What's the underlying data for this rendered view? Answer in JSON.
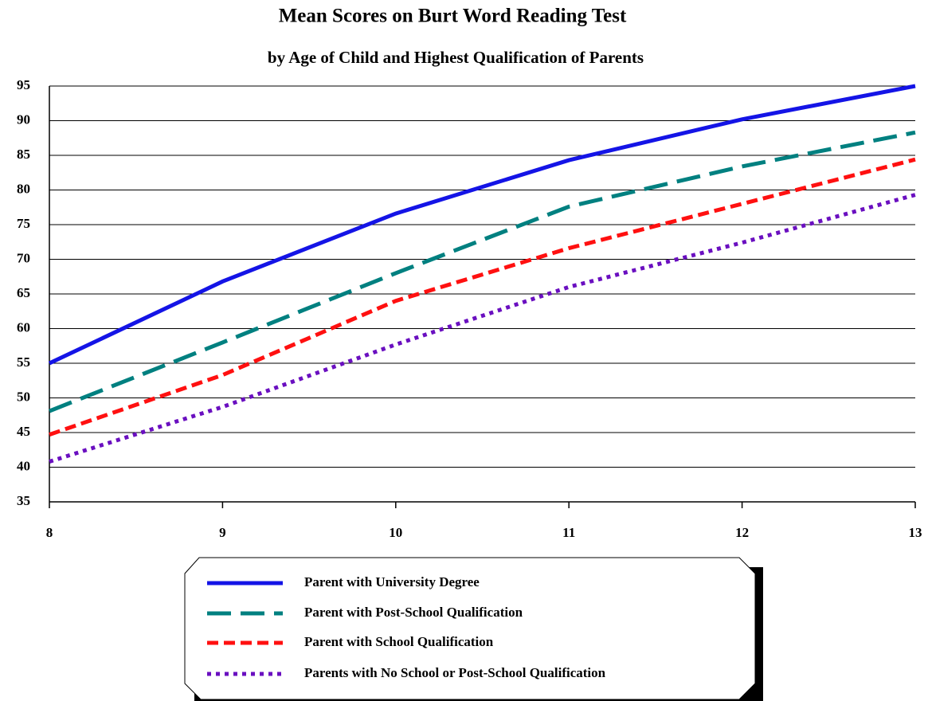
{
  "chart_data": {
    "type": "line",
    "title": "Mean Scores on Burt Word Reading Test",
    "subtitle": "by Age of Child and Highest Qualification of Parents",
    "x": [
      8,
      9,
      10,
      11,
      12,
      13
    ],
    "xlim": [
      8,
      13
    ],
    "xticks": [
      8,
      9,
      10,
      11,
      12,
      13
    ],
    "ylim": [
      35,
      95
    ],
    "yticks": [
      35,
      40,
      45,
      50,
      55,
      60,
      65,
      70,
      75,
      80,
      85,
      90,
      95
    ],
    "grid": true,
    "legend": "bottom",
    "series": [
      {
        "name": "Parent with University Degree",
        "color": "#1414e6",
        "linestyle": "solid",
        "values": [
          55,
          66.8,
          76.6,
          84.3,
          90.2,
          95
        ]
      },
      {
        "name": "Parent with Post-School Qualification",
        "color": "#008080",
        "linestyle": "long-dash",
        "values": [
          48.1,
          58,
          68,
          77.6,
          83.4,
          88.3
        ]
      },
      {
        "name": "Parent with School Qualification",
        "color": "#ff1010",
        "linestyle": "dash",
        "values": [
          44.7,
          53.3,
          64,
          71.6,
          78,
          84.4
        ]
      },
      {
        "name": "Parents with No School or Post-School Qualification",
        "color": "#6a0fc0",
        "linestyle": "dot",
        "values": [
          40.8,
          48.7,
          57.7,
          66,
          72.4,
          79.3
        ]
      }
    ]
  }
}
